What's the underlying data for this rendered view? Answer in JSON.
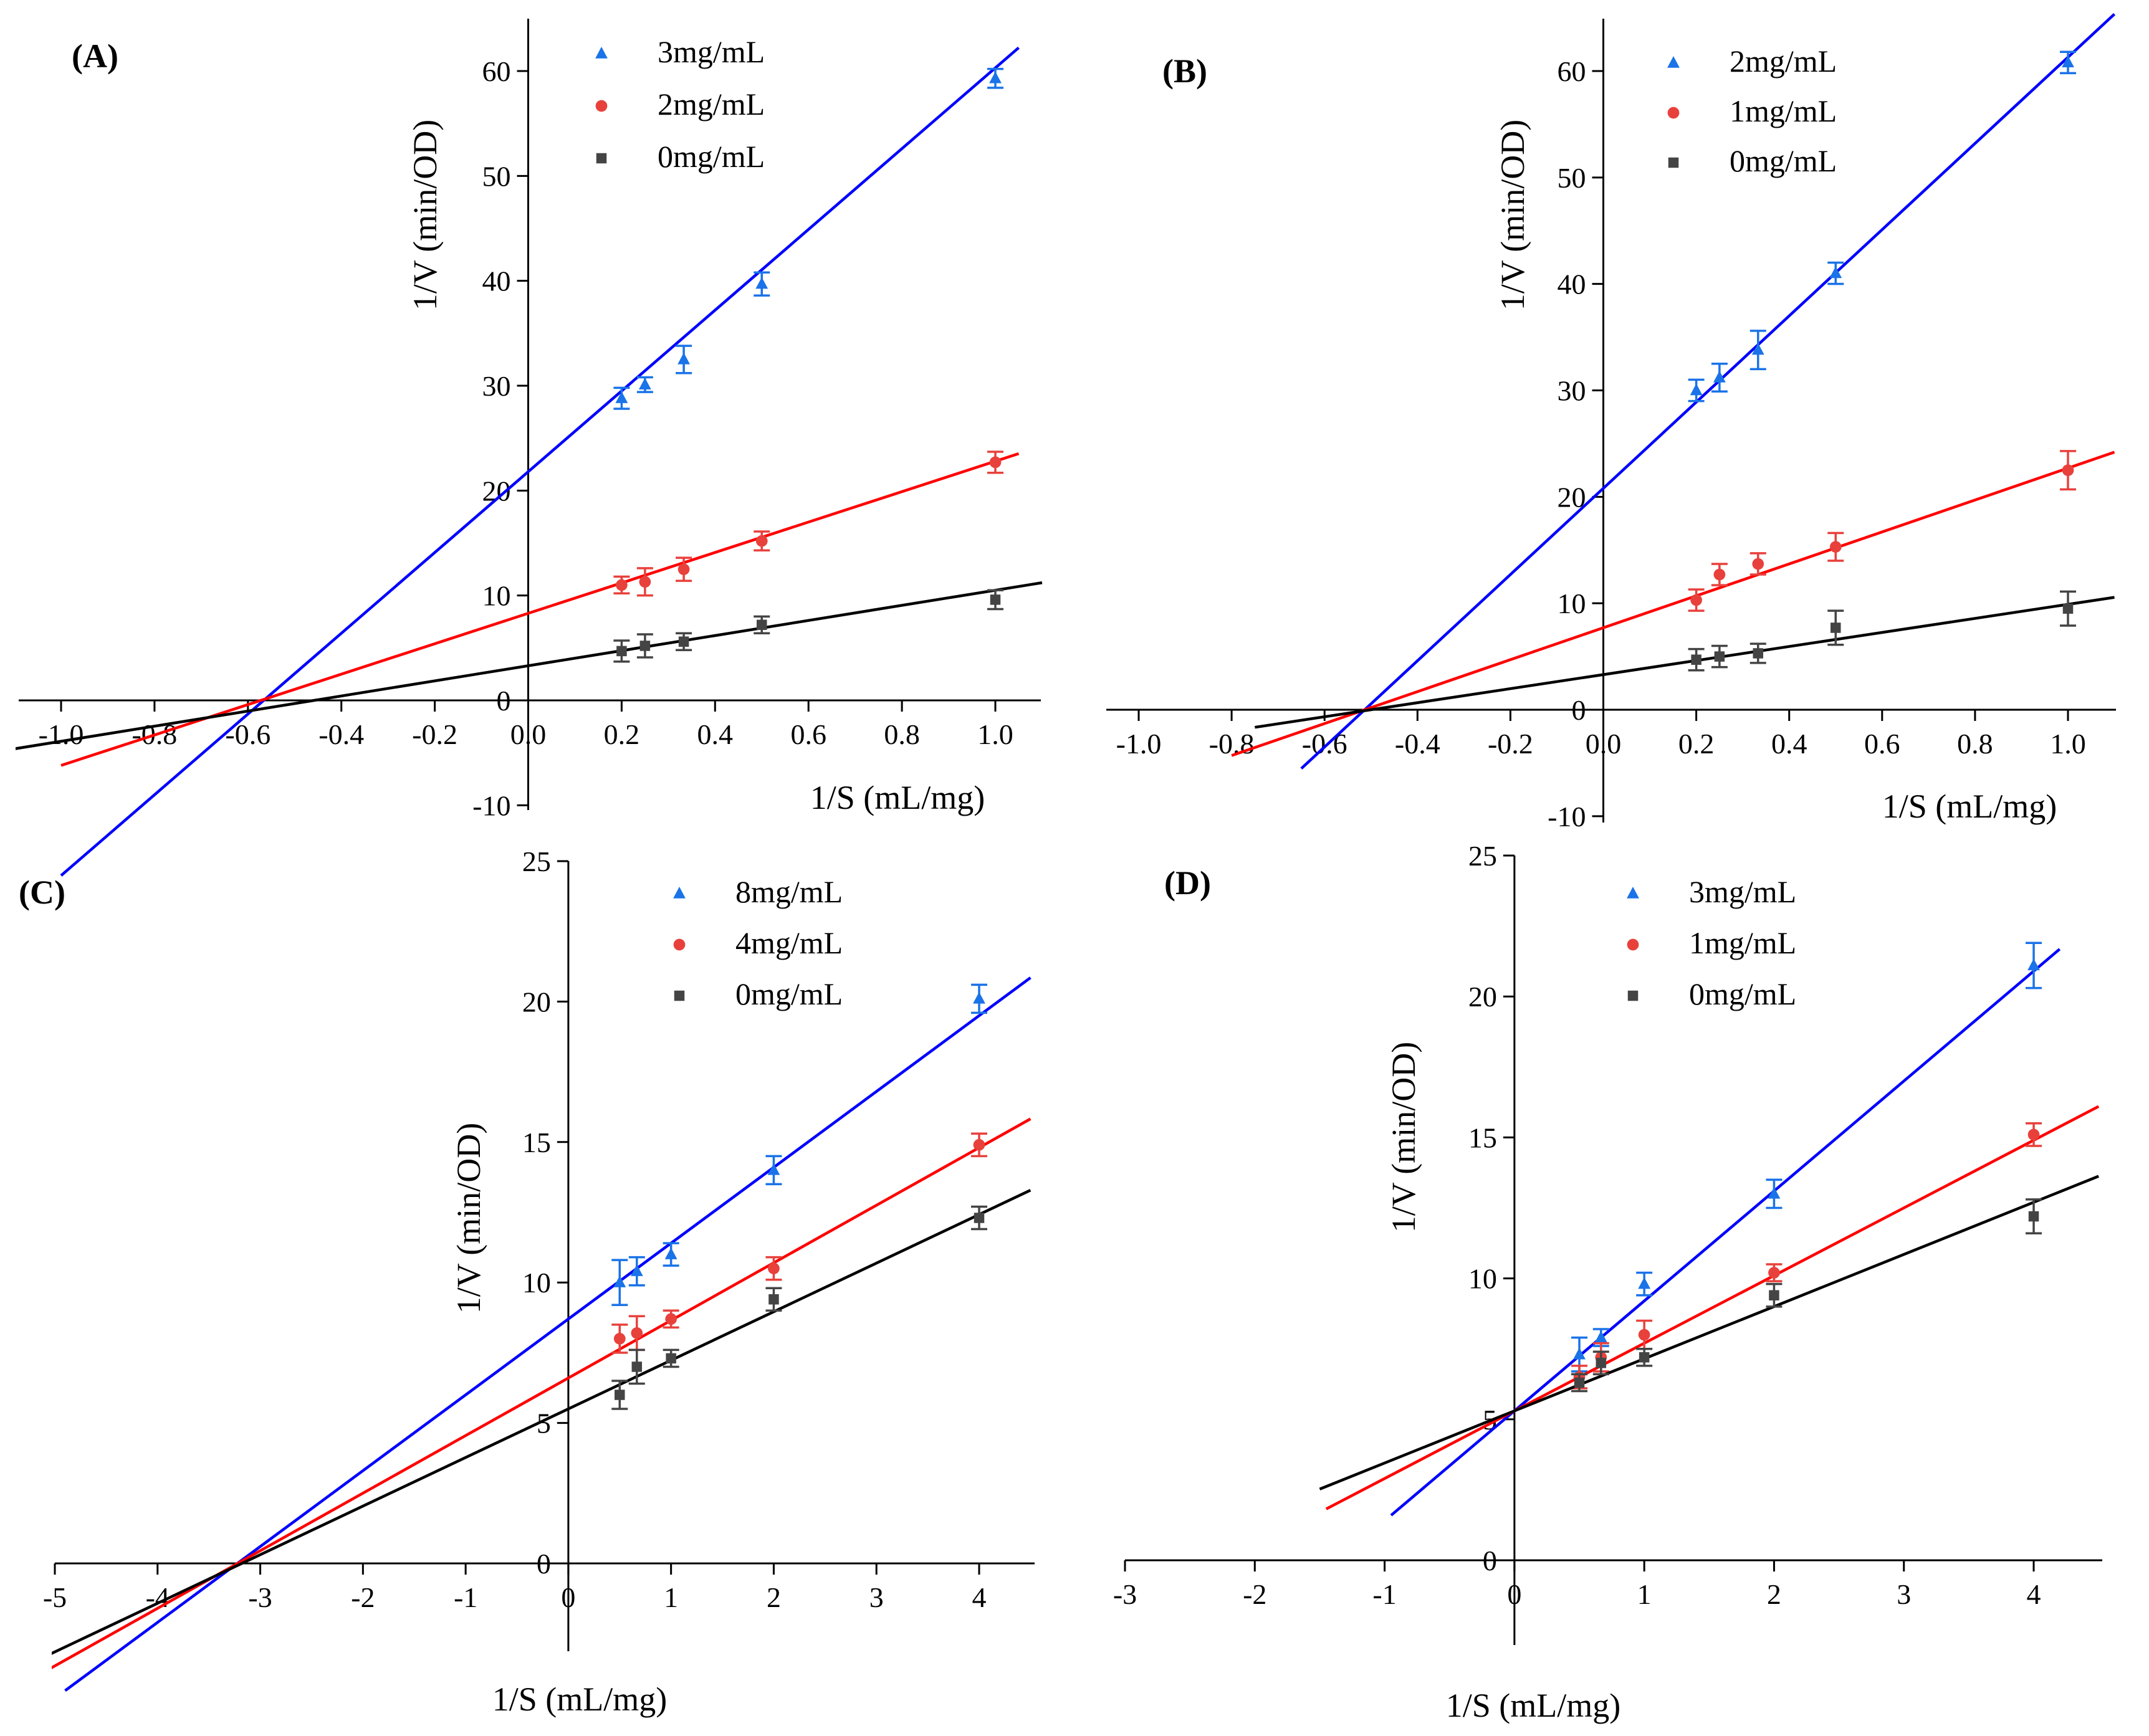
{
  "chart_data": [
    {
      "type": "scatter",
      "panel_label": "(A)",
      "xlabel": "1/S (mL/mg)",
      "ylabel": "1/V (min/OD)",
      "xlim": [
        -1.1,
        1.1
      ],
      "ylim": [
        -10,
        65
      ],
      "x_ticks": [
        -1.0,
        -0.8,
        -0.6,
        -0.4,
        -0.2,
        0.0,
        0.2,
        0.4,
        0.6,
        0.8,
        1.0
      ],
      "x_tick_labels": [
        "-1.0",
        "-0.8",
        "-0.6",
        "-0.4",
        "-0.2",
        "0.0",
        "0.2",
        "0.4",
        "0.6",
        "0.8",
        "1.0"
      ],
      "y_ticks": [
        -10,
        0,
        10,
        20,
        30,
        40,
        50,
        60
      ],
      "y_tick_labels": [
        "-10",
        "0",
        "10",
        "20",
        "30",
        "40",
        "50",
        "60"
      ],
      "legend_position": "top-right",
      "series": [
        {
          "name": "3mg/mL",
          "marker": "triangle",
          "color": "#1a73e8",
          "line_color": "#0000ff",
          "x": [
            0.2,
            0.25,
            0.333,
            0.5,
            1.0
          ],
          "y": [
            28.8,
            30.1,
            32.5,
            39.7,
            59.3
          ],
          "err": [
            1.0,
            0.7,
            1.3,
            1.1,
            0.9
          ],
          "fit": {
            "slope": 38.5,
            "intercept": 21.8,
            "x_range": [
              -1.0,
              1.05
            ]
          }
        },
        {
          "name": "2mg/mL",
          "marker": "circle",
          "color": "#e8413c",
          "line_color": "#ff0000",
          "x": [
            0.2,
            0.25,
            0.333,
            0.5,
            1.0
          ],
          "y": [
            11.0,
            11.3,
            12.5,
            15.2,
            22.7
          ],
          "err": [
            0.8,
            1.3,
            1.1,
            0.9,
            1.0
          ],
          "fit": {
            "slope": 14.5,
            "intercept": 8.3,
            "x_range": [
              -1.0,
              1.05
            ]
          }
        },
        {
          "name": "0mg/mL",
          "marker": "square",
          "color": "#444444",
          "line_color": "#000000",
          "x": [
            0.2,
            0.25,
            0.333,
            0.5,
            1.0
          ],
          "y": [
            4.7,
            5.2,
            5.6,
            7.2,
            9.6
          ],
          "err": [
            1.0,
            1.1,
            0.8,
            0.8,
            0.9
          ],
          "fit": {
            "slope": 7.2,
            "intercept": 3.3,
            "x_range": [
              -1.1,
              1.1
            ]
          }
        }
      ]
    },
    {
      "type": "scatter",
      "panel_label": "(B)",
      "xlabel": "1/S (mL/mg)",
      "ylabel": "1/V (min/OD)",
      "xlim": [
        -1.1,
        1.1
      ],
      "ylim": [
        -10,
        65
      ],
      "x_ticks": [
        -1.0,
        -0.8,
        -0.6,
        -0.4,
        -0.2,
        0.0,
        0.2,
        0.4,
        0.6,
        0.8,
        1.0
      ],
      "x_tick_labels": [
        "-1.0",
        "-0.8",
        "-0.6",
        "-0.4",
        "-0.2",
        "0.0",
        "0.2",
        "0.4",
        "0.6",
        "0.8",
        "1.0"
      ],
      "y_ticks": [
        -10,
        0,
        10,
        20,
        30,
        40,
        50,
        60
      ],
      "y_tick_labels": [
        "-10",
        "0",
        "10",
        "20",
        "30",
        "40",
        "50",
        "60"
      ],
      "legend_position": "top-right",
      "series": [
        {
          "name": "2mg/mL",
          "marker": "triangle",
          "color": "#1a73e8",
          "line_color": "#0000ff",
          "x": [
            0.2,
            0.25,
            0.333,
            0.5,
            1.0
          ],
          "y": [
            30.0,
            31.2,
            33.8,
            41.0,
            60.8
          ],
          "err": [
            1.0,
            1.3,
            1.8,
            1.0,
            1.0
          ],
          "fit": {
            "slope": 40.5,
            "intercept": 20.8,
            "x_range": [
              -0.65,
              1.1
            ]
          }
        },
        {
          "name": "1mg/mL",
          "marker": "circle",
          "color": "#e8413c",
          "line_color": "#ff0000",
          "x": [
            0.2,
            0.25,
            0.333,
            0.5,
            1.0
          ],
          "y": [
            10.3,
            12.7,
            13.7,
            15.3,
            22.5
          ],
          "err": [
            1.0,
            1.0,
            1.0,
            1.3,
            1.8
          ],
          "fit": {
            "slope": 15.0,
            "intercept": 7.7,
            "x_range": [
              -0.8,
              1.1
            ]
          }
        },
        {
          "name": "0mg/mL",
          "marker": "square",
          "color": "#444444",
          "line_color": "#000000",
          "x": [
            0.2,
            0.25,
            0.333,
            0.5,
            1.0
          ],
          "y": [
            4.7,
            5.0,
            5.3,
            7.7,
            9.5
          ],
          "err": [
            1.0,
            1.0,
            0.9,
            1.6,
            1.6
          ],
          "fit": {
            "slope": 6.6,
            "intercept": 3.3,
            "x_range": [
              -0.75,
              1.1
            ]
          }
        }
      ]
    },
    {
      "type": "scatter",
      "panel_label": "(C)",
      "xlabel": "1/S (mL/mg)",
      "ylabel": "1/V (min/OD)",
      "xlim": [
        -5.3,
        4.5
      ],
      "ylim": [
        -1.5,
        25
      ],
      "x_ticks": [
        -5,
        -4,
        -3,
        -2,
        -1,
        0,
        1,
        2,
        3,
        4
      ],
      "x_tick_labels": [
        "-5",
        "-4",
        "-3",
        "-2",
        "-1",
        "0",
        "1",
        "2",
        "3",
        "4"
      ],
      "y_ticks": [
        0,
        5,
        10,
        15,
        20,
        25
      ],
      "y_tick_labels": [
        "0",
        "5",
        "10",
        "15",
        "20",
        "25"
      ],
      "legend_position": "top-right",
      "series": [
        {
          "name": "8mg/mL",
          "marker": "triangle",
          "color": "#1a73e8",
          "line_color": "#0000ff",
          "x": [
            0.5,
            0.667,
            1.0,
            2.0,
            4.0
          ],
          "y": [
            10.0,
            10.4,
            11.0,
            14.0,
            20.1
          ],
          "err": [
            0.8,
            0.5,
            0.4,
            0.5,
            0.5
          ],
          "fit": {
            "slope": 2.7,
            "intercept": 8.7,
            "x_range": [
              -4.9,
              4.5
            ]
          }
        },
        {
          "name": "4mg/mL",
          "marker": "circle",
          "color": "#e8413c",
          "line_color": "#ff0000",
          "x": [
            0.5,
            0.667,
            1.0,
            2.0,
            4.0
          ],
          "y": [
            8.0,
            8.2,
            8.7,
            10.5,
            14.9
          ],
          "err": [
            0.5,
            0.6,
            0.3,
            0.4,
            0.4
          ],
          "fit": {
            "slope": 2.05,
            "intercept": 6.6,
            "x_range": [
              -5.3,
              4.5
            ]
          }
        },
        {
          "name": "0mg/mL",
          "marker": "square",
          "color": "#444444",
          "line_color": "#000000",
          "x": [
            0.5,
            0.667,
            1.0,
            2.0,
            4.0
          ],
          "y": [
            6.0,
            7.0,
            7.3,
            9.4,
            12.3
          ],
          "err": [
            0.5,
            0.6,
            0.3,
            0.4,
            0.4
          ],
          "fit": {
            "slope": 1.73,
            "intercept": 5.5,
            "x_range": [
              -5.3,
              4.5
            ]
          }
        }
      ]
    },
    {
      "type": "scatter",
      "panel_label": "(D)",
      "xlabel": "1/S (mL/mg)",
      "ylabel": "1/V (min/OD)",
      "xlim": [
        -3,
        4.5
      ],
      "ylim": [
        0,
        25
      ],
      "x_ticks": [
        -3,
        -2,
        -1,
        0,
        1,
        2,
        3,
        4
      ],
      "x_tick_labels": [
        "-3",
        "-2",
        "-1",
        "0",
        "1",
        "2",
        "3",
        "4"
      ],
      "y_ticks": [
        0,
        5,
        10,
        15,
        20,
        25
      ],
      "y_tick_labels": [
        "0",
        "5",
        "10",
        "15",
        "20",
        "25"
      ],
      "legend_position": "top-left",
      "series": [
        {
          "name": "3mg/mL",
          "marker": "triangle",
          "color": "#1a73e8",
          "line_color": "#0000ff",
          "x": [
            0.5,
            0.667,
            1.0,
            2.0,
            4.0
          ],
          "y": [
            7.3,
            7.9,
            9.8,
            13.0,
            21.1
          ],
          "err": [
            0.6,
            0.3,
            0.4,
            0.5,
            0.8
          ],
          "fit": {
            "slope": 3.9,
            "intercept": 5.3,
            "x_range": [
              -0.95,
              4.2
            ]
          }
        },
        {
          "name": "1mg/mL",
          "marker": "circle",
          "color": "#e8413c",
          "line_color": "#ff0000",
          "x": [
            0.5,
            0.667,
            1.0,
            2.0,
            4.0
          ],
          "y": [
            6.5,
            7.2,
            8.0,
            10.2,
            15.1
          ],
          "err": [
            0.4,
            0.5,
            0.5,
            0.3,
            0.4
          ],
          "fit": {
            "slope": 2.4,
            "intercept": 5.3,
            "x_range": [
              -1.45,
              4.5
            ]
          }
        },
        {
          "name": "0mg/mL",
          "marker": "square",
          "color": "#444444",
          "line_color": "#000000",
          "x": [
            0.5,
            0.667,
            1.0,
            2.0,
            4.0
          ],
          "y": [
            6.3,
            7.0,
            7.2,
            9.4,
            12.2
          ],
          "err": [
            0.3,
            0.4,
            0.3,
            0.4,
            0.6
          ],
          "fit": {
            "slope": 1.85,
            "intercept": 5.3,
            "x_range": [
              -1.5,
              4.5
            ]
          }
        }
      ]
    }
  ]
}
